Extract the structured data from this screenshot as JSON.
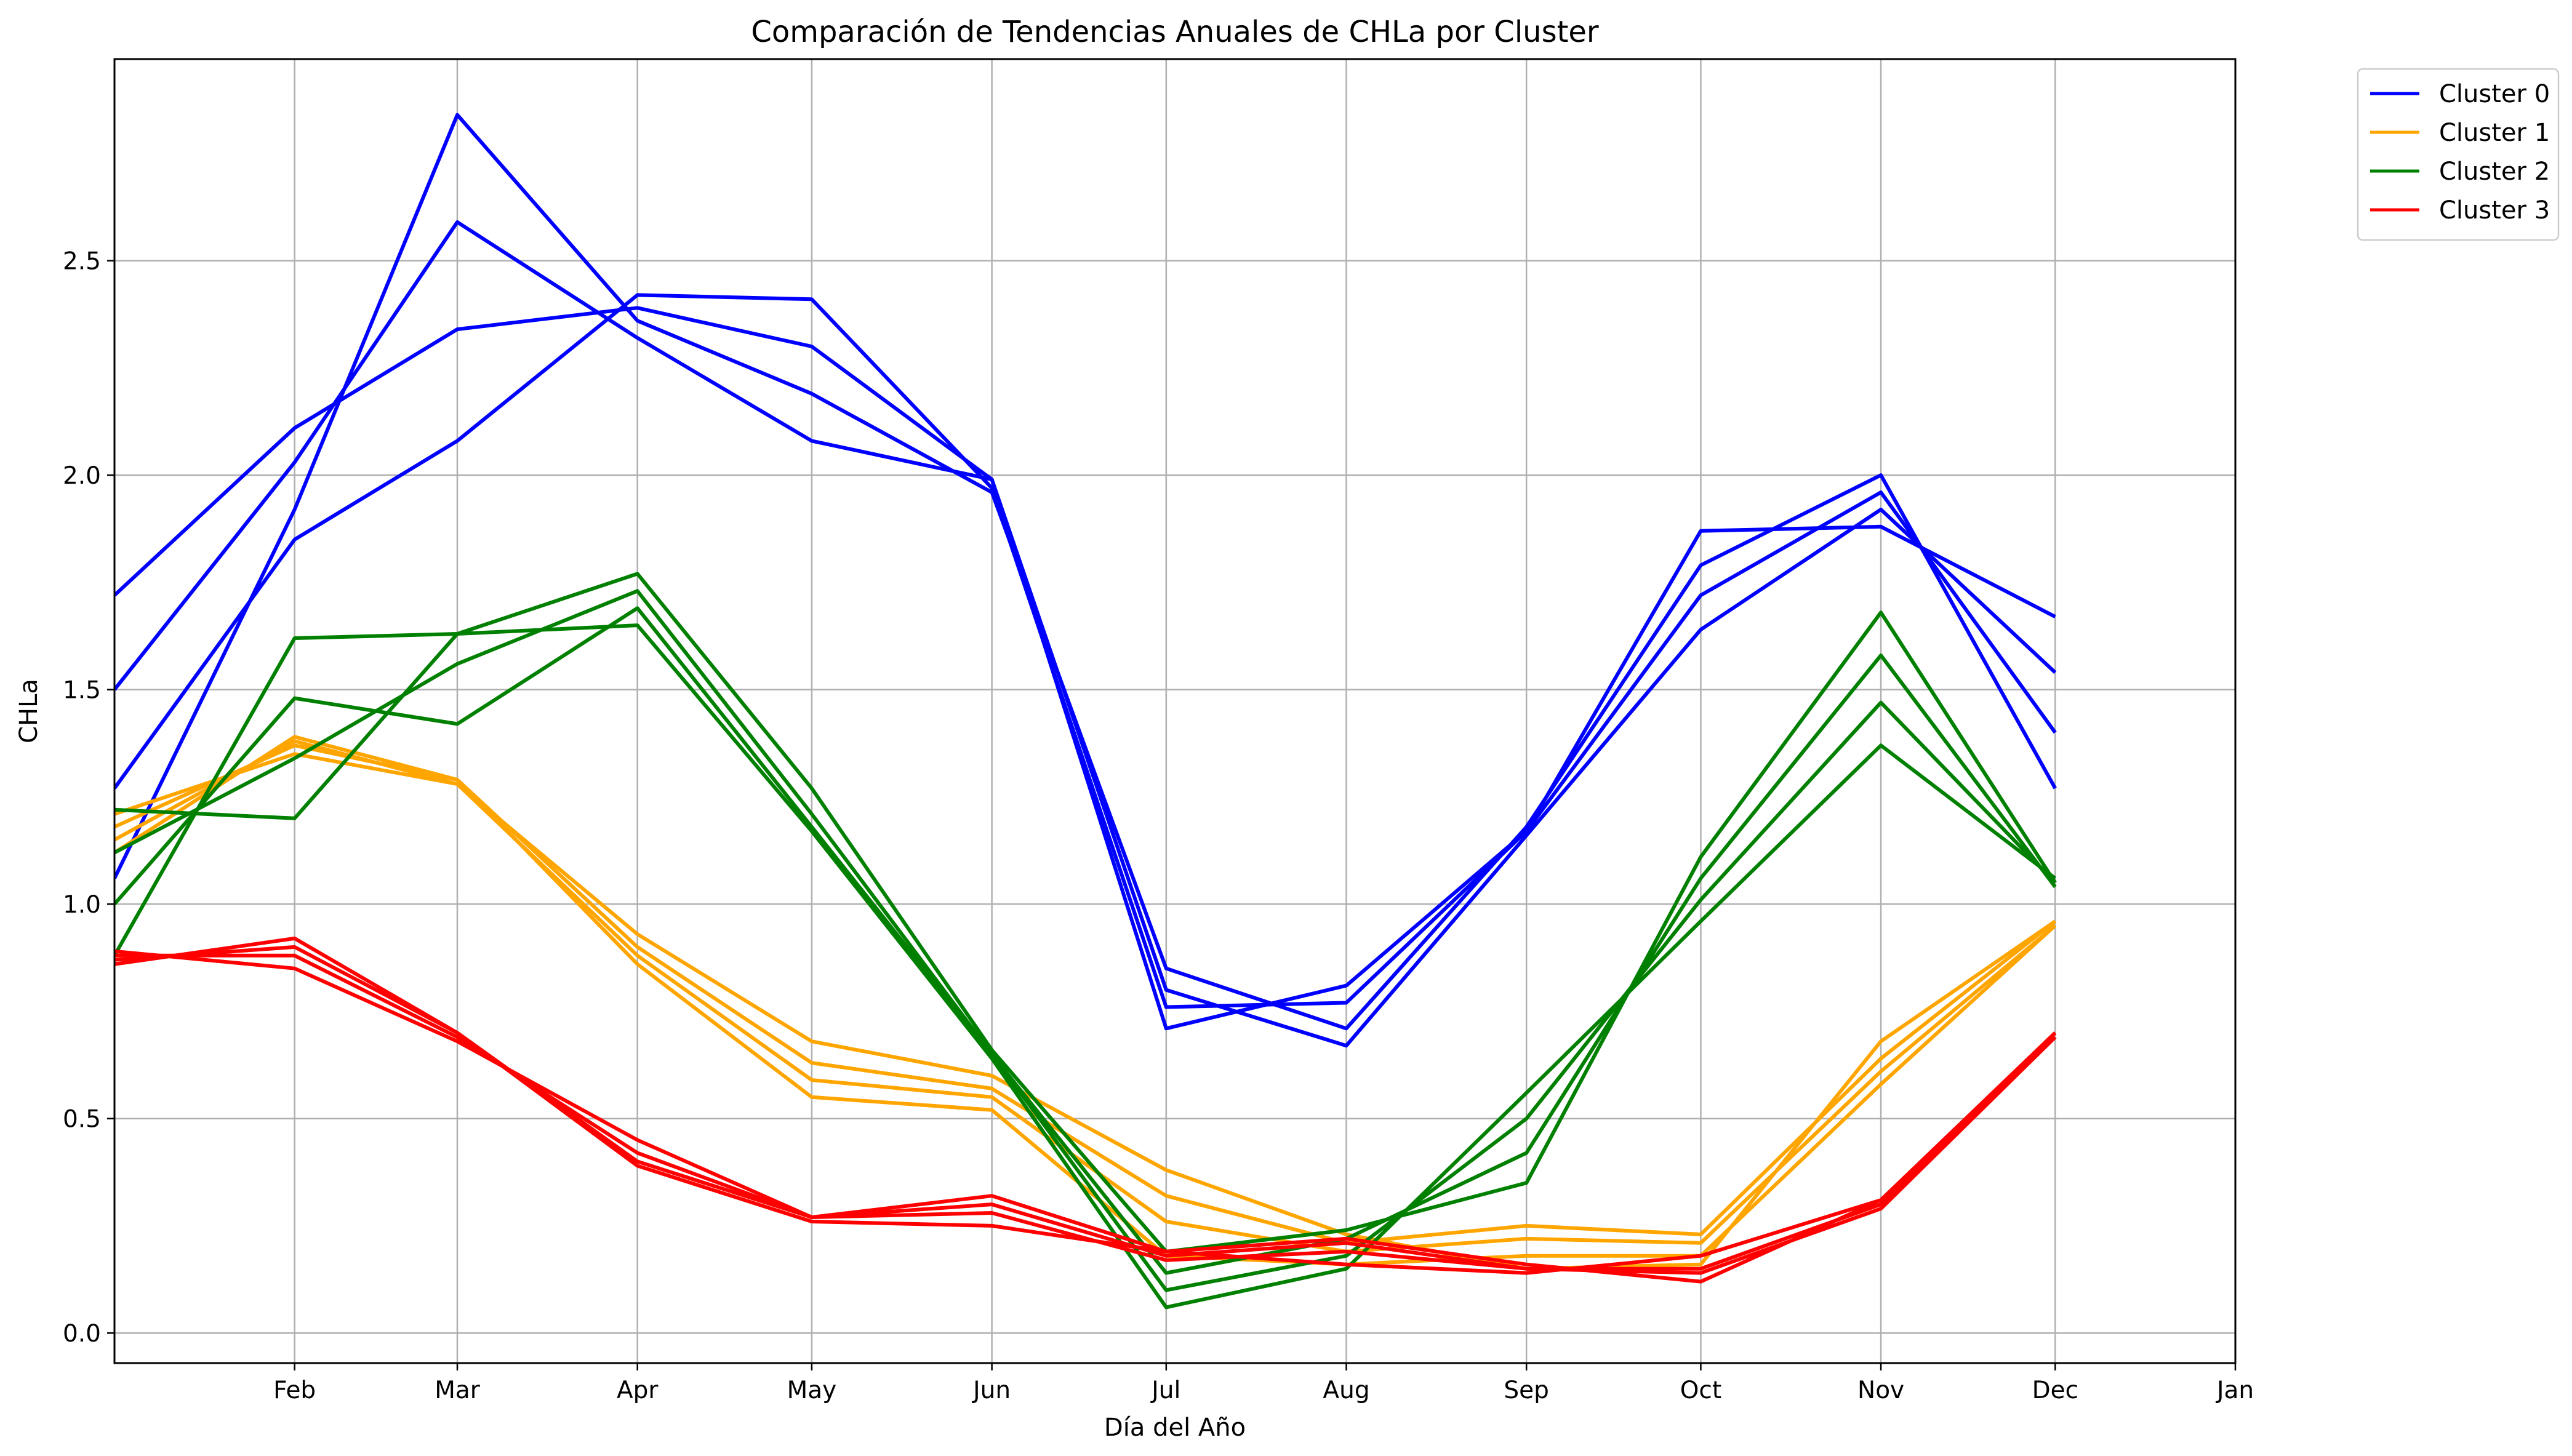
{
  "chart_data": {
    "type": "line",
    "title": "Comparación de Tendencias Anuales de CHLa por Cluster",
    "xlabel": "Día del Año",
    "ylabel": "CHLa",
    "x_ticks": [
      {
        "date": "2001-02-01",
        "label": "Feb"
      },
      {
        "date": "2001-03-01",
        "label": "Mar"
      },
      {
        "date": "2001-04-01",
        "label": "Apr"
      },
      {
        "date": "2001-05-01",
        "label": "May"
      },
      {
        "date": "2001-06-01",
        "label": "Jun"
      },
      {
        "date": "2001-07-01",
        "label": "Jul"
      },
      {
        "date": "2001-08-01",
        "label": "Aug"
      },
      {
        "date": "2001-09-01",
        "label": "Sep"
      },
      {
        "date": "2001-10-01",
        "label": "Oct"
      },
      {
        "date": "2001-11-01",
        "label": "Nov"
      },
      {
        "date": "2001-12-01",
        "label": "Dec"
      },
      {
        "date": "2002-01-01",
        "label": "Jan"
      }
    ],
    "xlim": [
      "2001-01-01",
      "2002-01-01"
    ],
    "ylim": [
      -0.07,
      2.97
    ],
    "y_ticks": [
      0.0,
      0.5,
      1.0,
      1.5,
      2.0,
      2.5
    ],
    "y_tick_labels": [
      "0.0",
      "0.5",
      "1.0",
      "1.5",
      "2.0",
      "2.5"
    ],
    "grid": true,
    "legend_position": "outside-top-right",
    "x": [
      "2001-01-01",
      "2001-02-01",
      "2001-03-01",
      "2001-04-01",
      "2001-05-01",
      "2001-06-01",
      "2001-07-01",
      "2001-08-01",
      "2001-09-01",
      "2001-10-01",
      "2001-11-01",
      "2001-12-01"
    ],
    "legend": [
      {
        "label": "Cluster 0",
        "color": "#0000ff"
      },
      {
        "label": "Cluster 1",
        "color": "#ffa500"
      },
      {
        "label": "Cluster 2",
        "color": "#008000"
      },
      {
        "label": "Cluster 3",
        "color": "#ff0000"
      }
    ],
    "series": [
      {
        "group": "Cluster 0",
        "color": "#0000ff",
        "values": [
          1.72,
          2.11,
          2.34,
          2.39,
          2.3,
          1.99,
          0.71,
          0.81,
          1.17,
          1.87,
          1.88,
          1.67
        ]
      },
      {
        "group": "Cluster 0",
        "color": "#0000ff",
        "values": [
          1.5,
          2.03,
          2.59,
          2.32,
          2.08,
          1.99,
          0.8,
          0.67,
          1.16,
          1.64,
          1.92,
          1.54
        ]
      },
      {
        "group": "Cluster 0",
        "color": "#0000ff",
        "values": [
          1.27,
          1.85,
          2.08,
          2.42,
          2.41,
          1.97,
          0.76,
          0.77,
          1.17,
          1.72,
          1.96,
          1.4
        ]
      },
      {
        "group": "Cluster 0",
        "color": "#0000ff",
        "values": [
          1.06,
          1.92,
          2.84,
          2.36,
          2.19,
          1.96,
          0.85,
          0.71,
          1.18,
          1.79,
          2.0,
          1.27
        ]
      },
      {
        "group": "Cluster 1",
        "color": "#ffa500",
        "values": [
          1.21,
          1.35,
          1.28,
          0.93,
          0.68,
          0.6,
          0.38,
          0.23,
          0.15,
          0.16,
          0.68,
          0.96
        ]
      },
      {
        "group": "Cluster 1",
        "color": "#ffa500",
        "values": [
          1.18,
          1.37,
          1.29,
          0.9,
          0.63,
          0.57,
          0.32,
          0.21,
          0.25,
          0.23,
          0.64,
          0.96
        ]
      },
      {
        "group": "Cluster 1",
        "color": "#ffa500",
        "values": [
          1.15,
          1.38,
          1.28,
          0.88,
          0.59,
          0.55,
          0.26,
          0.19,
          0.22,
          0.21,
          0.61,
          0.95
        ]
      },
      {
        "group": "Cluster 1",
        "color": "#ffa500",
        "values": [
          1.12,
          1.39,
          1.29,
          0.86,
          0.55,
          0.52,
          0.18,
          0.16,
          0.18,
          0.18,
          0.58,
          0.95
        ]
      },
      {
        "group": "Cluster 2",
        "color": "#008000",
        "values": [
          1.22,
          1.2,
          1.63,
          1.77,
          1.27,
          0.66,
          0.19,
          0.24,
          0.35,
          1.11,
          1.68,
          1.05
        ]
      },
      {
        "group": "Cluster 2",
        "color": "#008000",
        "values": [
          1.12,
          1.34,
          1.56,
          1.73,
          1.21,
          0.65,
          0.14,
          0.22,
          0.42,
          1.06,
          1.58,
          1.04
        ]
      },
      {
        "group": "Cluster 2",
        "color": "#008000",
        "values": [
          1.0,
          1.48,
          1.42,
          1.69,
          1.18,
          0.65,
          0.1,
          0.18,
          0.5,
          1.01,
          1.47,
          1.05
        ]
      },
      {
        "group": "Cluster 2",
        "color": "#008000",
        "values": [
          0.88,
          1.62,
          1.63,
          1.65,
          1.17,
          0.64,
          0.06,
          0.15,
          0.56,
          0.96,
          1.37,
          1.06
        ]
      },
      {
        "group": "Cluster 3",
        "color": "#ff0000",
        "values": [
          0.89,
          0.85,
          0.68,
          0.45,
          0.27,
          0.32,
          0.19,
          0.16,
          0.14,
          0.18,
          0.31,
          0.7
        ]
      },
      {
        "group": "Cluster 3",
        "color": "#ff0000",
        "values": [
          0.88,
          0.88,
          0.69,
          0.42,
          0.27,
          0.3,
          0.18,
          0.21,
          0.15,
          0.15,
          0.3,
          0.69
        ]
      },
      {
        "group": "Cluster 3",
        "color": "#ff0000",
        "values": [
          0.87,
          0.9,
          0.7,
          0.4,
          0.27,
          0.28,
          0.17,
          0.19,
          0.15,
          0.14,
          0.29,
          0.69
        ]
      },
      {
        "group": "Cluster 3",
        "color": "#ff0000",
        "values": [
          0.86,
          0.92,
          0.7,
          0.39,
          0.26,
          0.25,
          0.19,
          0.22,
          0.16,
          0.12,
          0.31,
          0.7
        ]
      }
    ]
  }
}
